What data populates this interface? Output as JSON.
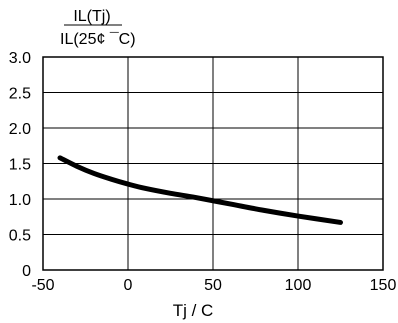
{
  "chart_data": {
    "type": "line",
    "ylabel_numerator": "IL(Tj)",
    "ylabel_denominator": "IL(25¢ ¯C)",
    "xlabel": "Tj / C",
    "xlim": [
      -50,
      150
    ],
    "ylim": [
      0,
      3.0
    ],
    "x_ticks": [
      -50,
      0,
      50,
      100,
      150
    ],
    "x_tick_labels": [
      "-50",
      "0",
      "50",
      "100",
      "150"
    ],
    "y_ticks": [
      0,
      0.5,
      1.0,
      1.5,
      2.0,
      2.5,
      3.0
    ],
    "y_tick_labels": [
      "0",
      "0.5",
      "1.0",
      "1.5",
      "2.0",
      "2.5",
      "3.0"
    ],
    "grid": true,
    "series": [
      {
        "x": [
          -40,
          -30,
          -20,
          -10,
          0,
          10,
          25,
          40,
          60,
          80,
          100,
          125
        ],
        "y": [
          1.58,
          1.46,
          1.36,
          1.28,
          1.21,
          1.15,
          1.08,
          1.02,
          0.93,
          0.84,
          0.76,
          0.67
        ]
      }
    ],
    "line_color": "#000000"
  }
}
